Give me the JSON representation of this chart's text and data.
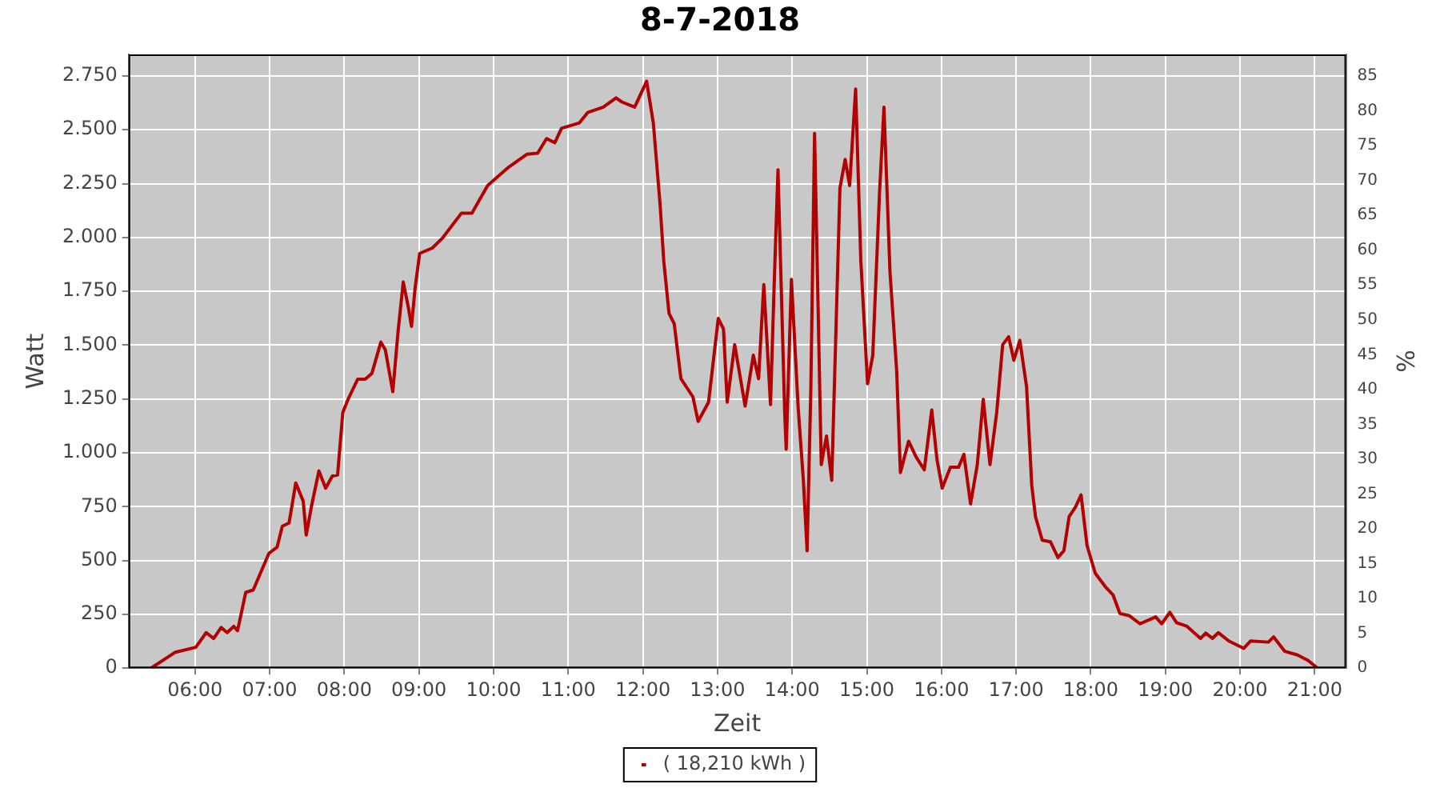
{
  "chart_data": {
    "type": "line",
    "title": "8-7-2018",
    "xlabel": "Zeit",
    "ylabel": "Watt",
    "y2label": "%",
    "xlim": [
      5.11,
      21.42
    ],
    "xticks": [
      {
        "value": 6,
        "label": "06:00"
      },
      {
        "value": 7,
        "label": "07:00"
      },
      {
        "value": 8,
        "label": "08:00"
      },
      {
        "value": 9,
        "label": "09:00"
      },
      {
        "value": 10,
        "label": "10:00"
      },
      {
        "value": 11,
        "label": "11:00"
      },
      {
        "value": 12,
        "label": "12:00"
      },
      {
        "value": 13,
        "label": "13:00"
      },
      {
        "value": 14,
        "label": "14:00"
      },
      {
        "value": 15,
        "label": "15:00"
      },
      {
        "value": 16,
        "label": "16:00"
      },
      {
        "value": 17,
        "label": "17:00"
      },
      {
        "value": 18,
        "label": "18:00"
      },
      {
        "value": 19,
        "label": "19:00"
      },
      {
        "value": 20,
        "label": "20:00"
      },
      {
        "value": 21,
        "label": "21:00"
      }
    ],
    "ylim": [
      0,
      2850
    ],
    "yticks": [
      0,
      250,
      500,
      750,
      {
        "value": 1000,
        "label": "1.000"
      },
      {
        "value": 1250,
        "label": "1.250"
      },
      {
        "value": 1500,
        "label": "1.500"
      },
      {
        "value": 1750,
        "label": "1.750"
      },
      {
        "value": 2000,
        "label": "2.000"
      },
      {
        "value": 2250,
        "label": "2.250"
      },
      {
        "value": 2500,
        "label": "2.500"
      },
      {
        "value": 2750,
        "label": "2.750"
      }
    ],
    "y2lim": [
      0,
      88.1
    ],
    "y2ticks": [
      0,
      5,
      10,
      15,
      20,
      25,
      30,
      35,
      40,
      45,
      50,
      55,
      60,
      65,
      70,
      75,
      80,
      85
    ],
    "grid": true,
    "legend": "bottom",
    "marker": "none",
    "line_style": "solid",
    "series": [
      {
        "name": "( 18,210 kWh )",
        "color": "#b30000",
        "x": [
          5.41,
          5.73,
          6.01,
          6.15,
          6.25,
          6.35,
          6.43,
          6.52,
          6.57,
          6.68,
          6.78,
          6.99,
          7.1,
          7.17,
          7.26,
          7.35,
          7.45,
          7.49,
          7.56,
          7.66,
          7.75,
          7.84,
          7.91,
          7.98,
          8.05,
          8.18,
          8.28,
          8.37,
          8.49,
          8.55,
          8.65,
          8.72,
          8.79,
          8.86,
          8.9,
          8.95,
          9.01,
          9.18,
          9.32,
          9.57,
          9.71,
          9.92,
          10.2,
          10.45,
          10.59,
          10.71,
          10.82,
          10.91,
          11.15,
          11.26,
          11.47,
          11.64,
          11.72,
          11.89,
          12.05,
          12.14,
          12.23,
          12.28,
          12.35,
          12.42,
          12.51,
          12.67,
          12.74,
          12.88,
          13.01,
          13.08,
          13.13,
          13.23,
          13.37,
          13.48,
          13.55,
          13.62,
          13.71,
          13.76,
          13.81,
          13.9,
          13.92,
          13.99,
          14.08,
          14.15,
          14.2,
          14.25,
          14.3,
          14.39,
          14.46,
          14.53,
          14.64,
          14.71,
          14.77,
          14.85,
          14.92,
          15.01,
          15.08,
          15.17,
          15.23,
          15.31,
          15.4,
          15.45,
          15.56,
          15.66,
          15.77,
          15.87,
          15.94,
          16.01,
          16.12,
          16.23,
          16.3,
          16.39,
          16.48,
          16.56,
          16.65,
          16.74,
          16.82,
          16.9,
          16.97,
          17.05,
          17.14,
          17.21,
          17.26,
          17.35,
          17.46,
          17.56,
          17.64,
          17.71,
          17.8,
          17.87,
          17.95,
          18.06,
          18.2,
          18.3,
          18.39,
          18.52,
          18.66,
          18.87,
          18.95,
          19.06,
          19.15,
          19.29,
          19.47,
          19.54,
          19.63,
          19.71,
          19.85,
          20.05,
          20.14,
          20.38,
          20.45,
          20.6,
          20.77,
          20.91,
          21.04
        ],
        "values": [
          0,
          73,
          97,
          165,
          138,
          189,
          165,
          194,
          174,
          352,
          363,
          533,
          562,
          659,
          674,
          860,
          775,
          618,
          751,
          916,
          836,
          892,
          897,
          1187,
          1248,
          1342,
          1342,
          1369,
          1514,
          1478,
          1284,
          1562,
          1793,
          1672,
          1587,
          1769,
          1926,
          1951,
          1999,
          2113,
          2113,
          2241,
          2326,
          2387,
          2391,
          2459,
          2440,
          2507,
          2532,
          2580,
          2605,
          2648,
          2629,
          2605,
          2725,
          2532,
          2156,
          1890,
          1648,
          1599,
          1344,
          1260,
          1146,
          1235,
          1624,
          1575,
          1235,
          1502,
          1217,
          1453,
          1344,
          1781,
          1224,
          1793,
          2314,
          1187,
          1017,
          1805,
          1211,
          872,
          545,
          1297,
          2483,
          945,
          1078,
          872,
          2229,
          2362,
          2241,
          2689,
          1890,
          1321,
          1453,
          2205,
          2605,
          1842,
          1381,
          908,
          1054,
          981,
          921,
          1199,
          969,
          836,
          933,
          933,
          993,
          763,
          945,
          1248,
          945,
          1187,
          1502,
          1539,
          1430,
          1522,
          1308,
          848,
          703,
          594,
          587,
          514,
          545,
          703,
          751,
          805,
          570,
          441,
          376,
          339,
          254,
          243,
          206,
          238,
          206,
          259,
          211,
          194,
          138,
          163,
          138,
          165,
          126,
          92,
          126,
          121,
          145,
          78,
          61,
          36,
          0
        ]
      }
    ]
  }
}
